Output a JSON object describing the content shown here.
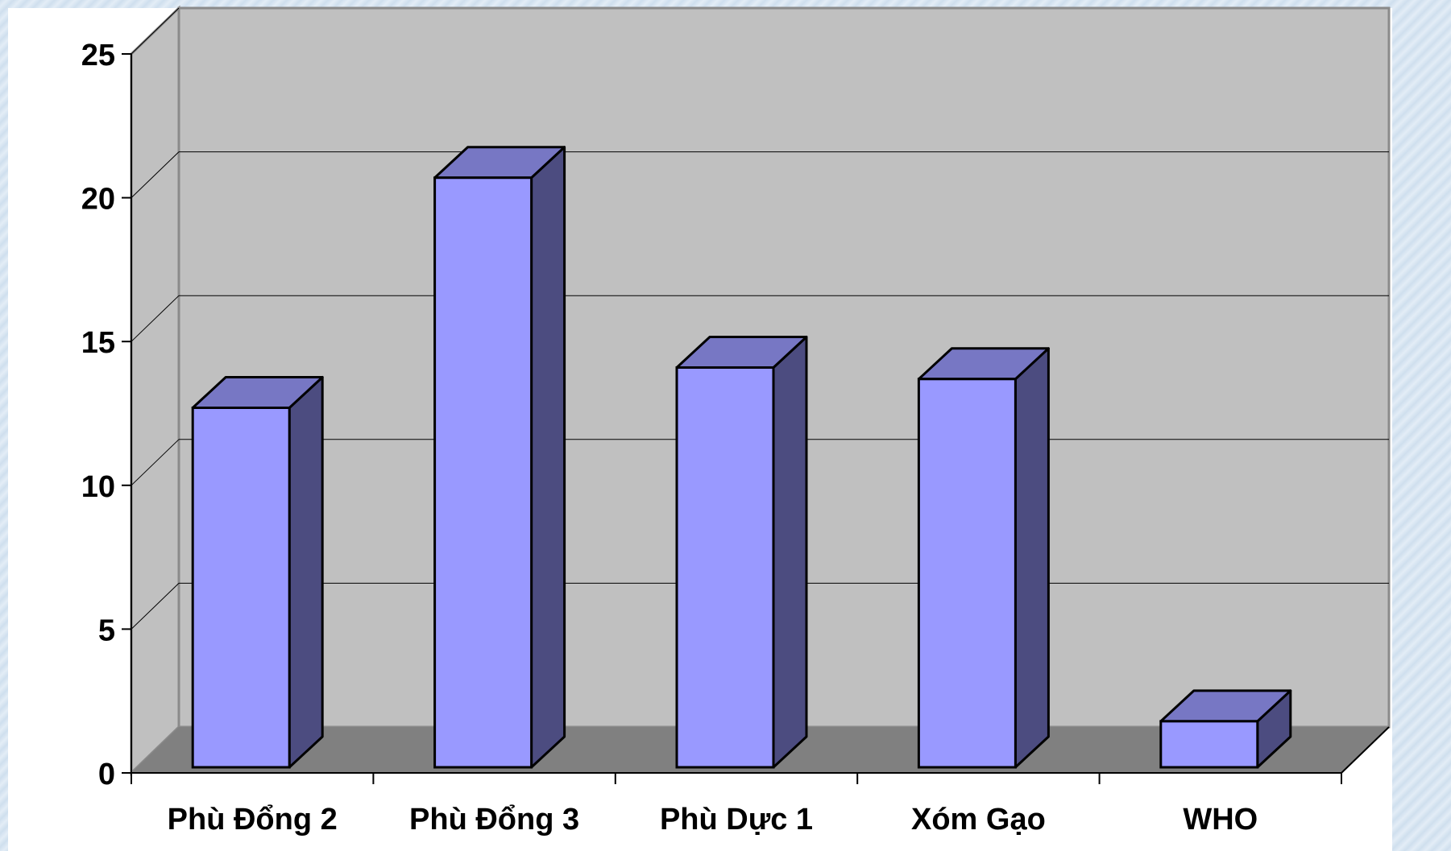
{
  "chart_data": {
    "type": "bar",
    "title": "",
    "xlabel": "",
    "ylabel": "",
    "categories": [
      "Phù Đổng 2",
      "Phù Đổng 3",
      "Phù Dực 1",
      "Xóm Gạo",
      "WHO"
    ],
    "values": [
      12.5,
      20.5,
      13.9,
      13.5,
      1.6
    ],
    "ylim": [
      0,
      25
    ],
    "yticks": [
      "0",
      "5",
      "10",
      "15",
      "20",
      "25"
    ],
    "grid": true,
    "legend": "none",
    "colors": {
      "bar_front": "#9999ff",
      "bar_top": "#7777c4",
      "bar_side": "#4c4c80",
      "back_wall": "#c0c0c0",
      "side_wall": "#c0c0c0",
      "floor": "#808080",
      "gridline": "#000000"
    }
  }
}
